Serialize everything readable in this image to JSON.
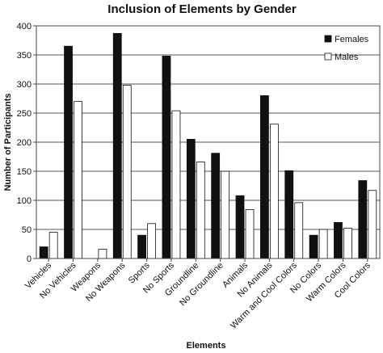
{
  "chart_data": {
    "type": "bar",
    "title": "Inclusion of Elements by Gender",
    "xlabel": "Elements",
    "ylabel": "Number of Participants",
    "ylim": [
      0,
      400
    ],
    "yticks": [
      0,
      50,
      100,
      150,
      200,
      250,
      300,
      350,
      400
    ],
    "grid": true,
    "legend_position": "top-right",
    "categories": [
      "Vehicles",
      "No Vehicles",
      "Weapons",
      "No Weapons",
      "Sports",
      "No Sports",
      "Groundline",
      "No Groundline",
      "Animals",
      "No Animals",
      "Warm and Cool Colors",
      "No Colors",
      "Warm Colors",
      "Cool Colors"
    ],
    "series": [
      {
        "name": "Females",
        "color": "#111111",
        "values": [
          20,
          365,
          0,
          387,
          40,
          348,
          205,
          181,
          108,
          280,
          151,
          40,
          62,
          134
        ]
      },
      {
        "name": "Males",
        "color": "#ffffff",
        "values": [
          45,
          270,
          16,
          298,
          60,
          254,
          166,
          150,
          84,
          231,
          96,
          50,
          52,
          117
        ]
      }
    ]
  }
}
